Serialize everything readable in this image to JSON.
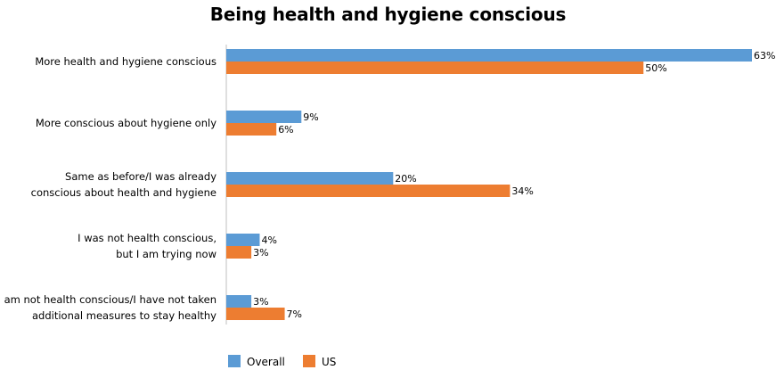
{
  "chart_data": {
    "type": "bar",
    "orientation": "horizontal",
    "title": "Being health and hygiene conscious",
    "categories": [
      [
        "More health and hygiene conscious"
      ],
      [
        "More conscious about hygiene only"
      ],
      [
        "Same as before/I was already",
        "conscious about health and hygiene"
      ],
      [
        "I was not health conscious,",
        "but I am trying now"
      ],
      [
        "I am not health conscious/I have not taken",
        "additional measures to stay healthy"
      ]
    ],
    "series": [
      {
        "name": "Overall",
        "color": "#5B9BD5",
        "values": [
          63,
          9,
          20,
          4,
          3
        ]
      },
      {
        "name": "US",
        "color": "#ED7D31",
        "values": [
          50,
          6,
          34,
          3,
          7
        ]
      }
    ],
    "value_suffix": "%",
    "xlim": [
      0,
      63
    ],
    "grid": false,
    "legend_position": "bottom"
  }
}
